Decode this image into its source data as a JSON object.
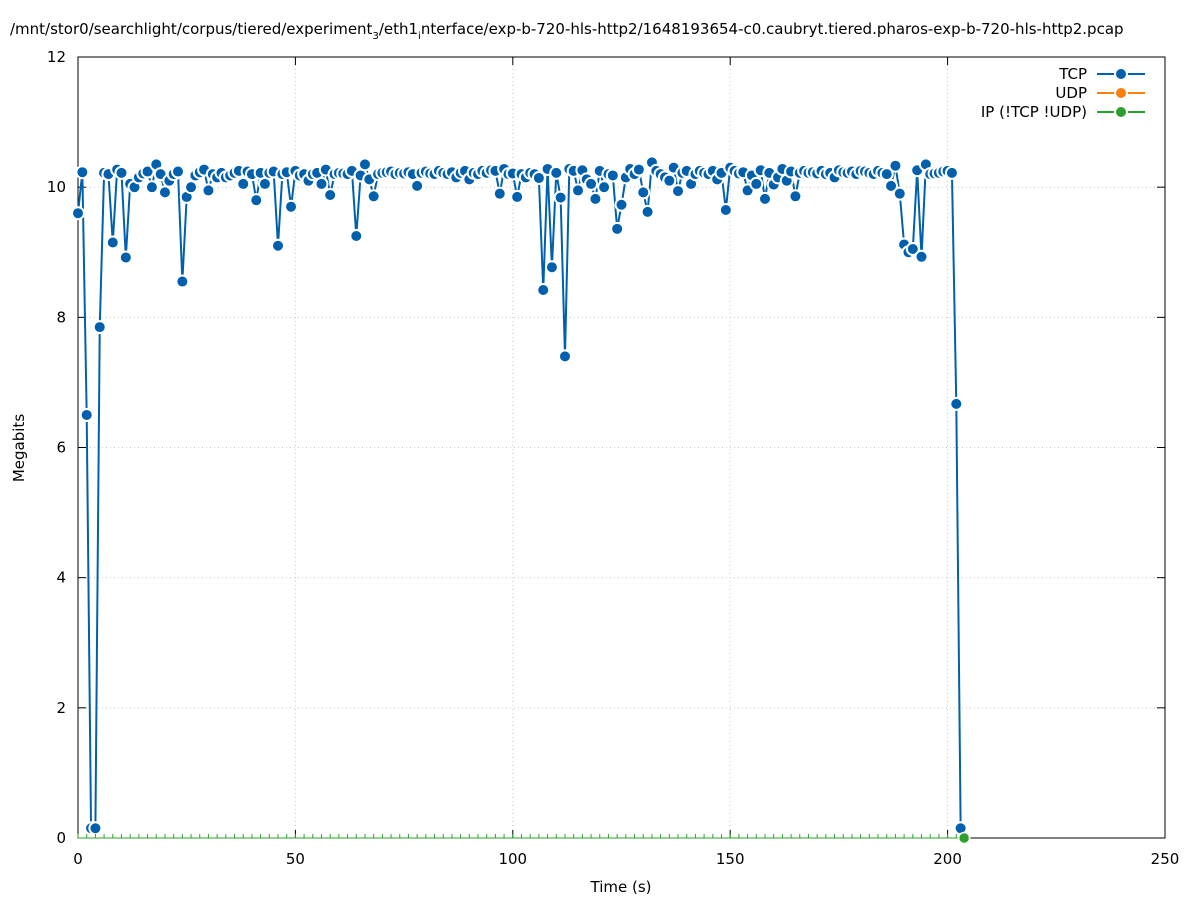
{
  "chart_data": {
    "type": "line",
    "title_main": "/mnt/stor0/searchlight/corpus/tiered/experiment",
    "title_sub": "3",
    "title_rest": "/eth1",
    "title_sub2": "i",
    "title_end": "nterface/exp-b-720-hls-http2/1648193654-c0.caubryt.tiered.pharos-exp-b-720-hls-http2.pcap",
    "xlabel": "Time (s)",
    "ylabel": "Megabits",
    "xlim": [
      0,
      250
    ],
    "ylim": [
      0,
      12
    ],
    "xticks": [
      "0",
      "50",
      "100",
      "150",
      "200",
      "250"
    ],
    "yticks": [
      "0",
      "2",
      "4",
      "6",
      "8",
      "10",
      "12"
    ],
    "grid": true,
    "legend_position": "top-right",
    "colors": {
      "TCP": "#0060ad",
      "UDP": "#ff7f0e",
      "IP": "#2ca02c"
    },
    "legend": [
      "TCP",
      "UDP",
      "IP (!TCP  !UDP)"
    ],
    "series": [
      {
        "name": "TCP",
        "x": [
          0,
          1,
          2,
          3,
          4,
          5,
          6,
          7,
          8,
          9,
          10,
          11,
          12,
          13,
          14,
          15,
          16,
          17,
          18,
          19,
          20,
          21,
          22,
          23,
          24,
          25,
          26,
          27,
          28,
          29,
          30,
          31,
          32,
          33,
          34,
          35,
          36,
          37,
          38,
          39,
          40,
          41,
          42,
          43,
          44,
          45,
          46,
          47,
          48,
          49,
          50,
          51,
          52,
          53,
          54,
          55,
          56,
          57,
          58,
          59,
          60,
          61,
          62,
          63,
          64,
          65,
          66,
          67,
          68,
          69,
          70,
          71,
          72,
          73,
          74,
          75,
          76,
          77,
          78,
          79,
          80,
          81,
          82,
          83,
          84,
          85,
          86,
          87,
          88,
          89,
          90,
          91,
          92,
          93,
          94,
          95,
          96,
          97,
          98,
          99,
          100,
          101,
          102,
          103,
          104,
          105,
          106,
          107,
          108,
          109,
          110,
          111,
          112,
          113,
          114,
          115,
          116,
          117,
          118,
          119,
          120,
          121,
          122,
          123,
          124,
          125,
          126,
          127,
          128,
          129,
          130,
          131,
          132,
          133,
          134,
          135,
          136,
          137,
          138,
          139,
          140,
          141,
          142,
          143,
          144,
          145,
          146,
          147,
          148,
          149,
          150,
          151,
          152,
          153,
          154,
          155,
          156,
          157,
          158,
          159,
          160,
          161,
          162,
          163,
          164,
          165,
          166,
          167,
          168,
          169,
          170,
          171,
          172,
          173,
          174,
          175,
          176,
          177,
          178,
          179,
          180,
          181,
          182,
          183,
          184,
          185,
          186,
          187,
          188,
          189,
          190,
          191,
          192,
          193,
          194,
          195,
          196,
          197,
          198,
          199,
          200,
          201,
          202,
          203
        ],
        "values": [
          9.6,
          10.23,
          6.5,
          0.15,
          0.15,
          7.85,
          10.22,
          10.2,
          9.15,
          10.27,
          10.22,
          8.92,
          10.05,
          10.0,
          10.15,
          10.21,
          10.24,
          10.0,
          10.35,
          10.2,
          9.92,
          10.1,
          10.2,
          10.24,
          8.55,
          9.85,
          10.0,
          10.18,
          10.23,
          10.27,
          9.95,
          10.2,
          10.15,
          10.22,
          10.15,
          10.18,
          10.22,
          10.25,
          10.05,
          10.24,
          10.2,
          9.8,
          10.22,
          10.05,
          10.22,
          10.24,
          9.1,
          10.2,
          10.23,
          9.7,
          10.25,
          10.18,
          10.2,
          10.1,
          10.2,
          10.22,
          10.05,
          10.27,
          9.88,
          10.2,
          10.22,
          10.21,
          10.2,
          10.25,
          9.25,
          10.18,
          10.35,
          10.12,
          9.86,
          10.2,
          10.22,
          10.23,
          10.24,
          10.2,
          10.22,
          10.21,
          10.23,
          10.2,
          10.02,
          10.22,
          10.24,
          10.21,
          10.2,
          10.25,
          10.22,
          10.2,
          10.23,
          10.15,
          10.22,
          10.25,
          10.12,
          10.22,
          10.2,
          10.25,
          10.22,
          10.26,
          10.25,
          9.9,
          10.28,
          10.2,
          10.21,
          9.85,
          10.2,
          10.15,
          10.22,
          10.2,
          10.14,
          8.42,
          10.28,
          8.77,
          10.22,
          9.84,
          7.4,
          10.28,
          10.25,
          9.95,
          10.26,
          10.12,
          10.05,
          9.82,
          10.25,
          10.0,
          10.2,
          10.18,
          9.36,
          9.73,
          10.15,
          10.28,
          10.2,
          10.27,
          9.92,
          9.62,
          10.38,
          10.25,
          10.2,
          10.15,
          10.1,
          10.3,
          9.94,
          10.22,
          10.25,
          10.05,
          10.2,
          10.25,
          10.22,
          10.2,
          10.25,
          10.12,
          10.22,
          9.65,
          10.3,
          10.25,
          10.21,
          10.23,
          9.95,
          10.18,
          10.05,
          10.26,
          9.82,
          10.22,
          10.04,
          10.15,
          10.28,
          10.1,
          10.24,
          9.86,
          10.22,
          10.25,
          10.22,
          10.23,
          10.21,
          10.25,
          10.2,
          10.22,
          10.15,
          10.26,
          10.23,
          10.22,
          10.24,
          10.2,
          10.25,
          10.24,
          10.22,
          10.2,
          10.25,
          10.22,
          10.2,
          10.02,
          10.33,
          9.9,
          9.12,
          9.0,
          9.05,
          10.26,
          8.93,
          10.35,
          10.2,
          10.21,
          10.22,
          10.24,
          10.25,
          10.22,
          6.67,
          0.15
        ]
      },
      {
        "name": "UDP",
        "x": [],
        "values": []
      },
      {
        "name": "IP (!TCP  !UDP)",
        "x": [
          0,
          2,
          4,
          6,
          8,
          10,
          12,
          14,
          16,
          18,
          20,
          22,
          24,
          26,
          28,
          30,
          32,
          34,
          36,
          38,
          40,
          42,
          44,
          46,
          48,
          50,
          52,
          54,
          56,
          58,
          60,
          62,
          64,
          66,
          68,
          70,
          72,
          74,
          76,
          78,
          80,
          82,
          84,
          86,
          88,
          90,
          92,
          94,
          96,
          98,
          100,
          102,
          104,
          106,
          108,
          110,
          112,
          114,
          116,
          118,
          120,
          122,
          124,
          126,
          128,
          130,
          132,
          134,
          136,
          138,
          140,
          142,
          144,
          146,
          148,
          150,
          152,
          154,
          156,
          158,
          160,
          162,
          164,
          166,
          168,
          170,
          172,
          174,
          176,
          178,
          180,
          182,
          184,
          186,
          188,
          190,
          192,
          194,
          196,
          198,
          200,
          202,
          203.8
        ],
        "values": [
          0,
          0,
          0,
          0,
          0,
          0,
          0,
          0,
          0,
          0,
          0,
          0,
          0,
          0,
          0,
          0,
          0,
          0,
          0,
          0,
          0,
          0,
          0,
          0,
          0,
          0,
          0,
          0,
          0,
          0,
          0,
          0,
          0,
          0,
          0,
          0,
          0,
          0,
          0,
          0,
          0,
          0,
          0,
          0,
          0,
          0,
          0,
          0,
          0,
          0,
          0,
          0,
          0,
          0,
          0,
          0,
          0,
          0,
          0,
          0,
          0,
          0,
          0,
          0,
          0,
          0,
          0,
          0,
          0,
          0,
          0,
          0,
          0,
          0,
          0,
          0,
          0,
          0,
          0,
          0,
          0,
          0,
          0,
          0,
          0,
          0,
          0,
          0,
          0,
          0,
          0,
          0,
          0,
          0,
          0,
          0,
          0,
          0,
          0,
          0,
          0,
          0,
          0
        ]
      }
    ]
  }
}
